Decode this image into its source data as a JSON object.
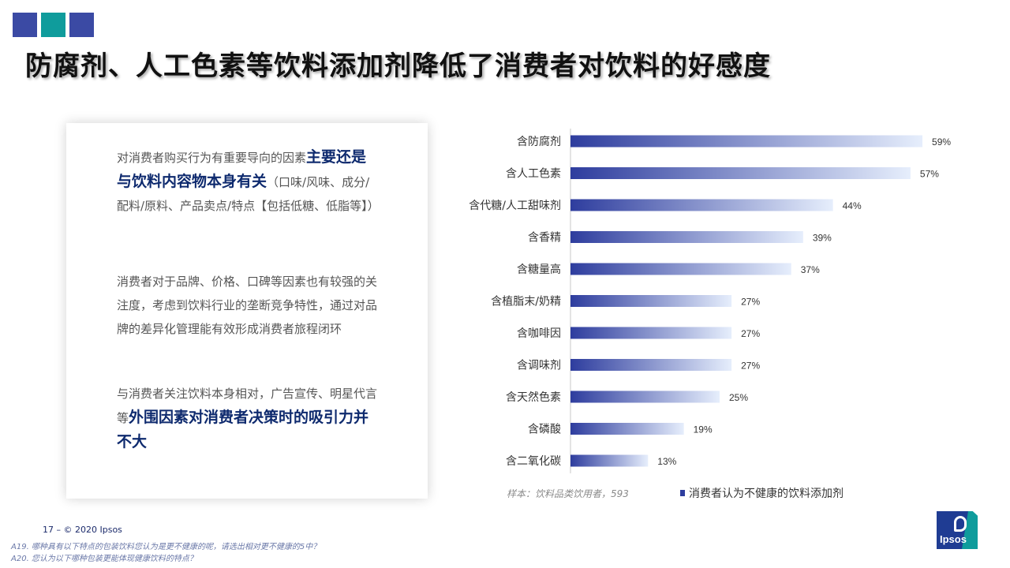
{
  "title": "防腐剂、人工色素等饮料添加剂降低了消费者对饮料的好感度",
  "colors": {
    "accent_blue": "#3b4aa4",
    "accent_teal": "#0f9c9c",
    "highlight_text": "#0e2a6e",
    "bar_start": "#2e3d9e",
    "bar_end": "#e6eefc"
  },
  "paragraphs": {
    "p1_before": "对消费者购买行为有重要导向的因素",
    "p1_highlight": "主要还是与饮料内容物本身有关",
    "p1_after": "（口味/风味、成分/配料/原料、产品卖点/特点【包括低糖、低脂等】）",
    "p2": "消费者对于品牌、价格、口碑等因素也有较强的关注度，考虑到饮料行业的垄断竞争特性，通过对品牌的差异化管理能有效形成消费者旅程闭环",
    "p3_before": "与消费者关注饮料本身相对，广告宣传、明星代言等",
    "p3_highlight": "外围因素对消费者决策时的吸引力并不大"
  },
  "chart_data": {
    "type": "bar",
    "orientation": "horizontal",
    "categories": [
      "含防腐剂",
      "含人工色素",
      "含代糖/人工甜味剂",
      "含香精",
      "含糖量高",
      "含植脂末/奶精",
      "含咖啡因",
      "含调味剂",
      "含天然色素",
      "含磷酸",
      "含二氧化碳"
    ],
    "series": [
      {
        "name": "消费者认为不健康的饮料添加剂",
        "values": [
          59,
          57,
          44,
          39,
          37,
          27,
          27,
          27,
          25,
          19,
          13
        ]
      }
    ],
    "value_labels": [
      "59%",
      "57%",
      "44%",
      "39%",
      "37%",
      "27%",
      "27%",
      "27%",
      "25%",
      "19%",
      "13%"
    ],
    "xlim": [
      0,
      100
    ],
    "grid": false,
    "legend_position": "bottom-right",
    "note": "样本：饮料品类饮用者，593"
  },
  "footer": {
    "page": "17 –",
    "copyright": "© 2020 Ipsos",
    "note1": "A19. 哪种具有以下特点的包装饮料您认为是更不健康的呢，请选出相对更不健康的5中？",
    "note2": "A20. 您认为以下哪种包装更能体现健康饮料的特点？",
    "logo_text": "Ipsos"
  }
}
